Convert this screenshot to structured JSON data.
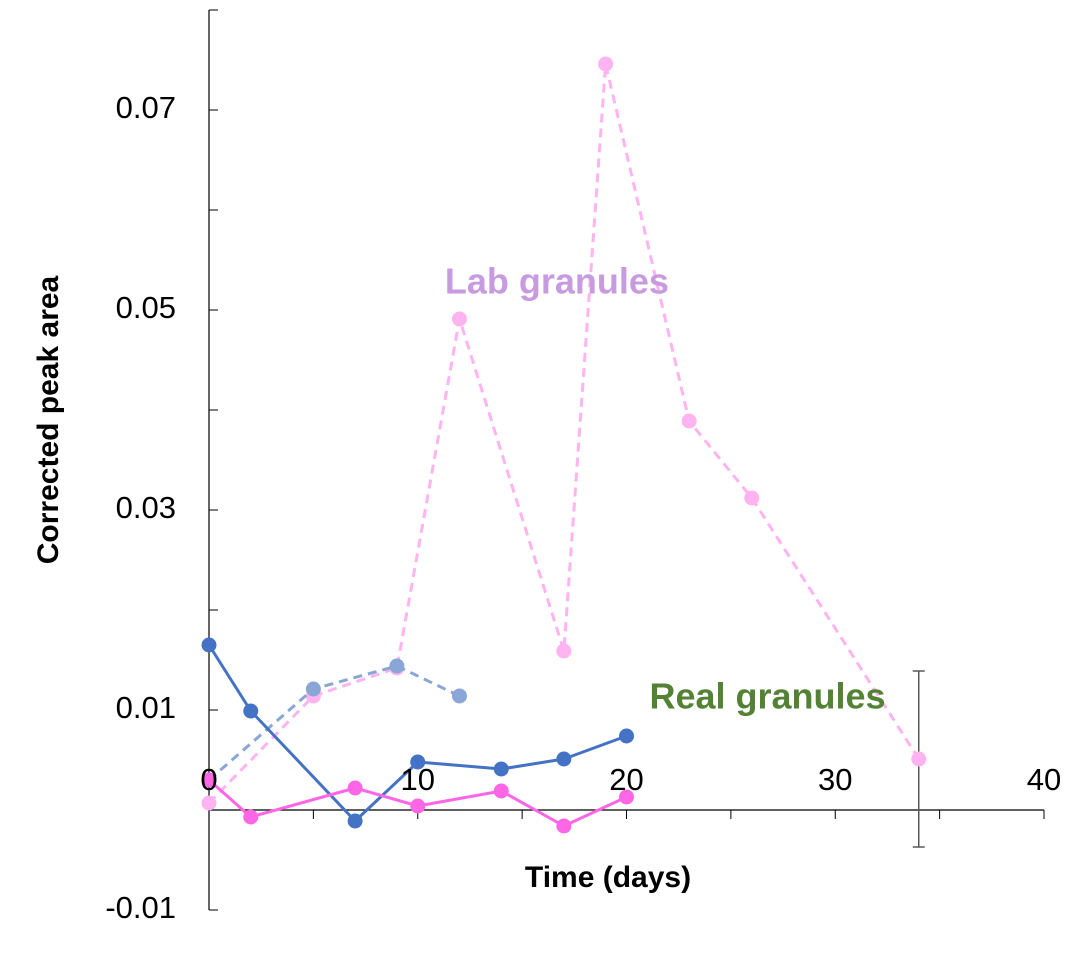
{
  "chart_data": {
    "type": "line",
    "xlabel": "Time (days)",
    "ylabel": "Corrected peak area",
    "xlim": [
      0,
      40
    ],
    "ylim": [
      -0.01,
      0.08
    ],
    "xticks": [
      0,
      10,
      20,
      30,
      40
    ],
    "yticks": [
      -0.01,
      0.01,
      0.03,
      0.05,
      0.07
    ],
    "xtick_labels": [
      "0",
      "10",
      "20",
      "30",
      "40"
    ],
    "ytick_labels": [
      "-0.01",
      "0.01",
      "0.03",
      "0.05",
      "0.07"
    ],
    "grid": false,
    "legend": "none",
    "series": [
      {
        "color": "#ffb3f0",
        "dashed": true,
        "marker_alpha": 1,
        "x": [
          0,
          5,
          9,
          12,
          17,
          19,
          23,
          26,
          34
        ],
        "y": [
          0.0007,
          0.0114,
          0.0142,
          0.0491,
          0.0159,
          0.0746,
          0.0389,
          0.0312,
          0.0051
        ]
      },
      {
        "color": "#89a6d6",
        "dashed": true,
        "marker_alpha": 1,
        "x": [
          0,
          5,
          9,
          12
        ],
        "y": [
          0.003,
          0.0121,
          0.0144,
          0.0114
        ]
      },
      {
        "color": "#4472c4",
        "dashed": false,
        "marker_alpha": 1,
        "x": [
          0,
          2,
          7,
          10,
          14,
          17,
          20
        ],
        "y": [
          0.0165,
          0.0099,
          -0.0011,
          0.0048,
          0.0041,
          0.0051,
          0.0074
        ]
      },
      {
        "color": "#ff66e6",
        "dashed": false,
        "marker_alpha": 1,
        "x": [
          0,
          2,
          7,
          10,
          14,
          17,
          20
        ],
        "y": [
          0.003,
          -0.0007,
          0.0022,
          0.0004,
          0.0019,
          -0.0016,
          0.0013
        ]
      }
    ],
    "error_bars": [
      {
        "x": 34,
        "low": -0.0037,
        "high": 0.0139,
        "color": "#595959"
      }
    ],
    "annotations": [
      {
        "text": "Lab granules",
        "x": 11.3,
        "y": 0.0526,
        "color": "#c89ae0"
      },
      {
        "text": "Real granules",
        "x": 21.1,
        "y": 0.0111,
        "color": "#548235"
      }
    ]
  }
}
